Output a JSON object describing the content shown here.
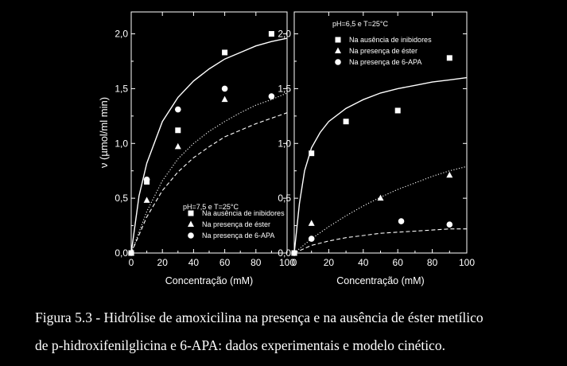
{
  "chart_data": [
    {
      "type": "scatter",
      "panel": "left",
      "annotation": "pH=7,5 e T=25°C",
      "xlabel": "Concentração (mM)",
      "ylabel": "ν (µmol/ml min)",
      "xlim": [
        0,
        100
      ],
      "ylim": [
        0,
        2.2
      ],
      "x_ticks": [
        "0",
        "20",
        "40",
        "60",
        "80",
        "100"
      ],
      "y_ticks": [
        "0,0",
        "0,5",
        "1,0",
        "1,5",
        "2,0"
      ],
      "legend_position": "bottom-right",
      "series": [
        {
          "name": "Na ausência de inibidores",
          "marker": "square",
          "line": "solid",
          "points": [
            [
              0,
              0
            ],
            [
              10,
              0.65
            ],
            [
              30,
              1.12
            ],
            [
              60,
              1.83
            ],
            [
              90,
              2.0
            ]
          ]
        },
        {
          "name": "Na presença de éster",
          "marker": "triangle",
          "line": "dotted",
          "points": [
            [
              0,
              0
            ],
            [
              10,
              0.48
            ],
            [
              30,
              0.97
            ],
            [
              60,
              1.4
            ]
          ]
        },
        {
          "name": "Na presença de 6-APA",
          "marker": "circle",
          "line": "dashed",
          "points": [
            [
              0,
              0
            ],
            [
              10,
              0.67
            ],
            [
              30,
              1.31
            ],
            [
              60,
              1.5
            ],
            [
              90,
              1.43
            ]
          ]
        }
      ],
      "model_curves": [
        {
          "series": "Na ausência de inibidores",
          "style": "solid",
          "points": [
            [
              0,
              0
            ],
            [
              5,
              0.52
            ],
            [
              10,
              0.82
            ],
            [
              20,
              1.2
            ],
            [
              30,
              1.42
            ],
            [
              40,
              1.57
            ],
            [
              50,
              1.68
            ],
            [
              60,
              1.77
            ],
            [
              70,
              1.83
            ],
            [
              80,
              1.89
            ],
            [
              90,
              1.93
            ],
            [
              100,
              1.96
            ]
          ]
        },
        {
          "series": "Na presença de éster",
          "style": "dotted",
          "points": [
            [
              0,
              0
            ],
            [
              10,
              0.38
            ],
            [
              20,
              0.66
            ],
            [
              30,
              0.86
            ],
            [
              40,
              1.0
            ],
            [
              50,
              1.11
            ],
            [
              60,
              1.2
            ],
            [
              70,
              1.28
            ],
            [
              80,
              1.35
            ],
            [
              90,
              1.4
            ],
            [
              100,
              1.46
            ]
          ]
        },
        {
          "series": "Na presença de 6-APA",
          "style": "dashed",
          "points": [
            [
              0,
              0
            ],
            [
              10,
              0.33
            ],
            [
              20,
              0.57
            ],
            [
              30,
              0.74
            ],
            [
              40,
              0.87
            ],
            [
              50,
              0.97
            ],
            [
              60,
              1.06
            ],
            [
              70,
              1.12
            ],
            [
              80,
              1.18
            ],
            [
              90,
              1.23
            ],
            [
              100,
              1.28
            ]
          ]
        }
      ]
    },
    {
      "type": "scatter",
      "panel": "right",
      "annotation": "pH=6,5 e T=25°C",
      "xlabel": "Concentração (mM)",
      "ylabel": "",
      "xlim": [
        0,
        100
      ],
      "ylim": [
        0,
        2.2
      ],
      "x_ticks": [
        "0",
        "20",
        "40",
        "60",
        "80",
        "100"
      ],
      "y_ticks": [
        "0,0",
        "0,5",
        "1,0",
        "1,5",
        "2,0"
      ],
      "legend_position": "top-left",
      "series": [
        {
          "name": "Na ausência de inibidores",
          "marker": "square",
          "line": "solid",
          "points": [
            [
              0,
              0
            ],
            [
              10,
              0.91
            ],
            [
              30,
              1.2
            ],
            [
              60,
              1.3
            ],
            [
              90,
              1.78
            ]
          ]
        },
        {
          "name": "Na presença de éster",
          "marker": "triangle",
          "line": "dotted",
          "points": [
            [
              0,
              0
            ],
            [
              10,
              0.27
            ],
            [
              50,
              0.5
            ],
            [
              90,
              0.71
            ]
          ]
        },
        {
          "name": "Na presença de 6-APA",
          "marker": "circle",
          "line": "dashed",
          "points": [
            [
              0,
              0
            ],
            [
              10,
              0.13
            ],
            [
              62,
              0.29
            ],
            [
              90,
              0.26
            ]
          ]
        }
      ],
      "model_curves": [
        {
          "series": "Na ausência de inibidores",
          "style": "solid",
          "points": [
            [
              0,
              0
            ],
            [
              3,
              0.45
            ],
            [
              6,
              0.75
            ],
            [
              10,
              0.96
            ],
            [
              15,
              1.1
            ],
            [
              20,
              1.2
            ],
            [
              30,
              1.32
            ],
            [
              40,
              1.4
            ],
            [
              50,
              1.46
            ],
            [
              60,
              1.5
            ],
            [
              70,
              1.53
            ],
            [
              80,
              1.56
            ],
            [
              90,
              1.58
            ],
            [
              100,
              1.6
            ]
          ]
        },
        {
          "series": "Na presença de éster",
          "style": "dotted",
          "points": [
            [
              0,
              0
            ],
            [
              10,
              0.13
            ],
            [
              20,
              0.24
            ],
            [
              30,
              0.34
            ],
            [
              40,
              0.43
            ],
            [
              50,
              0.51
            ],
            [
              60,
              0.58
            ],
            [
              70,
              0.64
            ],
            [
              80,
              0.7
            ],
            [
              90,
              0.75
            ],
            [
              100,
              0.79
            ]
          ]
        },
        {
          "series": "Na presença de 6-APA",
          "style": "dashed",
          "points": [
            [
              0,
              0
            ],
            [
              10,
              0.07
            ],
            [
              20,
              0.11
            ],
            [
              30,
              0.14
            ],
            [
              40,
              0.16
            ],
            [
              50,
              0.18
            ],
            [
              60,
              0.19
            ],
            [
              70,
              0.2
            ],
            [
              80,
              0.21
            ],
            [
              90,
              0.22
            ],
            [
              100,
              0.22
            ]
          ]
        }
      ]
    }
  ],
  "caption": {
    "line1": "Figura 5.3 - Hidrólise de amoxicilina na presença e na ausência de éster metílico",
    "line2": "de p-hidroxifenilglicina e 6-APA: dados experimentais e modelo cinético."
  }
}
